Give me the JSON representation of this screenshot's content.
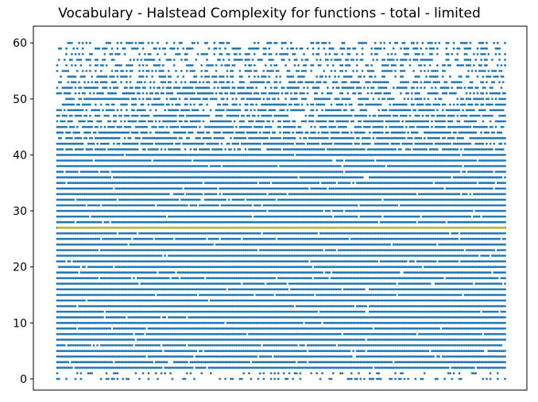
{
  "chart_data": {
    "type": "scatter",
    "title": "Vocabulary - Halstead Complexity for functions - total - limited",
    "xlabel": "",
    "ylabel": "",
    "ylim": [
      -2,
      63
    ],
    "yticks": [
      0,
      10,
      20,
      30,
      40,
      50,
      60
    ],
    "x_ticks_shown": false,
    "grid": false,
    "legend": "none",
    "series": [
      {
        "color": "#1f77b4",
        "marker": "dot",
        "y_values_integer_range": [
          0,
          60
        ],
        "density_note_dense_full_rows_below": 41
      }
    ],
    "reference_line": {
      "y": 27,
      "color": "#bcbd22"
    }
  }
}
